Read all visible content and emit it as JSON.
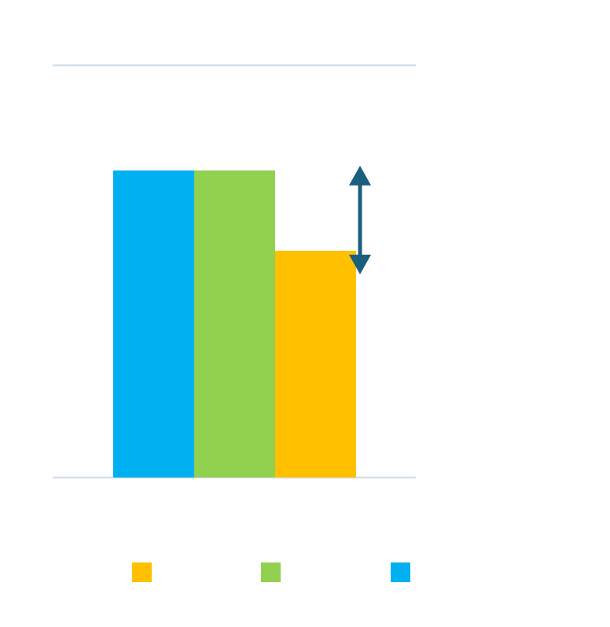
{
  "chart_data": {
    "type": "bar",
    "title": "",
    "xlabel": "",
    "ylabel": "",
    "grid": true,
    "ylim": [
      0,
      1.0
    ],
    "categories": [
      ""
    ],
    "series": [
      {
        "color": "#00b0f0",
        "values": [
          0.745
        ]
      },
      {
        "color": "#92d050",
        "values": [
          0.745
        ]
      },
      {
        "color": "#ffc000",
        "values": [
          0.55
        ]
      }
    ],
    "annotation": {
      "type": "double-arrow",
      "from": 0.745,
      "to": 0.55,
      "color": "#1b5e7e"
    },
    "gridline_color": "#d4e0ee",
    "legend": {
      "placement": "bottom",
      "order": [
        2,
        1,
        0
      ]
    }
  }
}
